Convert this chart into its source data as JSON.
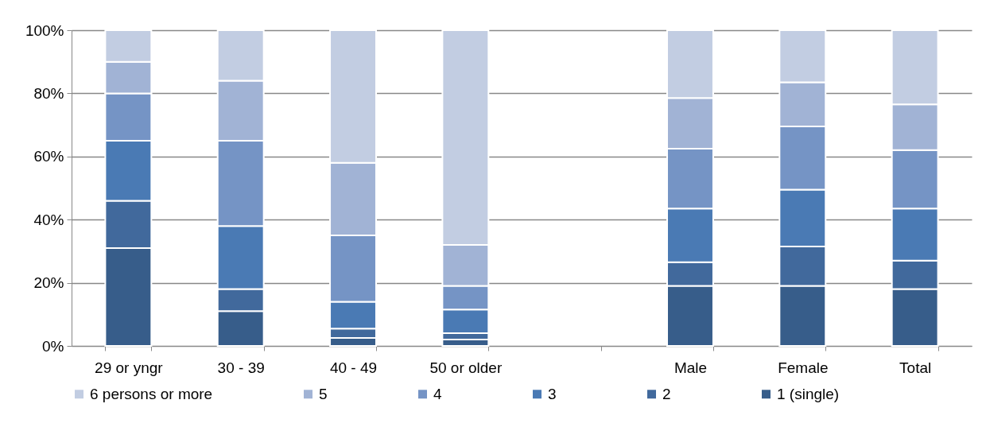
{
  "chart_data": {
    "type": "bar",
    "stacked": true,
    "categories": [
      "29 or yngr",
      "30 - 39",
      "40 - 49",
      "50 or older",
      null,
      "Male",
      "Female",
      "Total"
    ],
    "series": [
      {
        "name": "1 (single)",
        "color": "#375d8a",
        "values": [
          31,
          11,
          2.5,
          2,
          null,
          19,
          19,
          18
        ]
      },
      {
        "name": "2",
        "color": "#41699c",
        "values": [
          15,
          7,
          3,
          2,
          null,
          7.5,
          12.5,
          9
        ]
      },
      {
        "name": "3",
        "color": "#4a7ab4",
        "values": [
          19,
          20,
          8.5,
          7.5,
          null,
          17,
          18,
          16.5
        ]
      },
      {
        "name": "4",
        "color": "#7594c5",
        "values": [
          15,
          27,
          21,
          7.5,
          null,
          19,
          20,
          18.5
        ]
      },
      {
        "name": "5",
        "color": "#a1b3d5",
        "values": [
          10,
          19,
          23,
          13,
          null,
          16,
          14,
          14.5
        ]
      },
      {
        "name": "6 persons or more",
        "color": "#c2cde2",
        "values": [
          10,
          16,
          42,
          68,
          null,
          21.5,
          16.5,
          23.5
        ]
      }
    ],
    "ylim": [
      0,
      100
    ],
    "yticks": [
      {
        "value": 0,
        "label": "0%"
      },
      {
        "value": 20,
        "label": "20%"
      },
      {
        "value": 40,
        "label": "40%"
      },
      {
        "value": 60,
        "label": "60%"
      },
      {
        "value": 80,
        "label": "80%"
      },
      {
        "value": 100,
        "label": "100%"
      }
    ],
    "grid": "y",
    "legend": "bottom"
  }
}
